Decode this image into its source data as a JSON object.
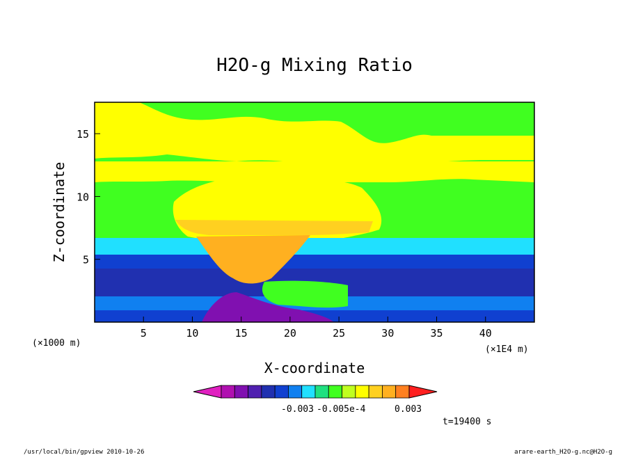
{
  "chart_data": {
    "type": "heatmap",
    "title": "H2O-g Mixing Ratio",
    "xlabel": "X-coordinate",
    "ylabel": "Z-coordinate",
    "x_unit": "(×1000 m)",
    "x_unit_right": "(×1E4 m)",
    "xlim": [
      0,
      45
    ],
    "ylim": [
      0,
      17.5
    ],
    "x_ticks": [
      5,
      10,
      15,
      20,
      25,
      30,
      35,
      40
    ],
    "y_ticks": [
      5,
      10,
      15
    ],
    "x_tick_labels": [
      "5",
      "10",
      "15",
      "20",
      "25",
      "30",
      "35",
      "40"
    ],
    "y_tick_labels": [
      "5",
      "10",
      "15"
    ],
    "colorbar": {
      "colors": [
        "#e020c0",
        "#b010b0",
        "#8010b0",
        "#5020b0",
        "#2030b0",
        "#1040d0",
        "#1080f0",
        "#20e0ff",
        "#20e080",
        "#40ff20",
        "#c0ff20",
        "#ffff00",
        "#ffd020",
        "#ffb020",
        "#ff8020",
        "#ff2020"
      ],
      "labels": [
        "-0.003",
        "-0.005e-4",
        "0.003"
      ]
    },
    "time_label": "t=19400 s",
    "footer_left": "/usr/local/bin/gpview  2010-10-26",
    "footer_right": "arare-earth_H2O-g.nc@H2O-g",
    "grid": false
  }
}
